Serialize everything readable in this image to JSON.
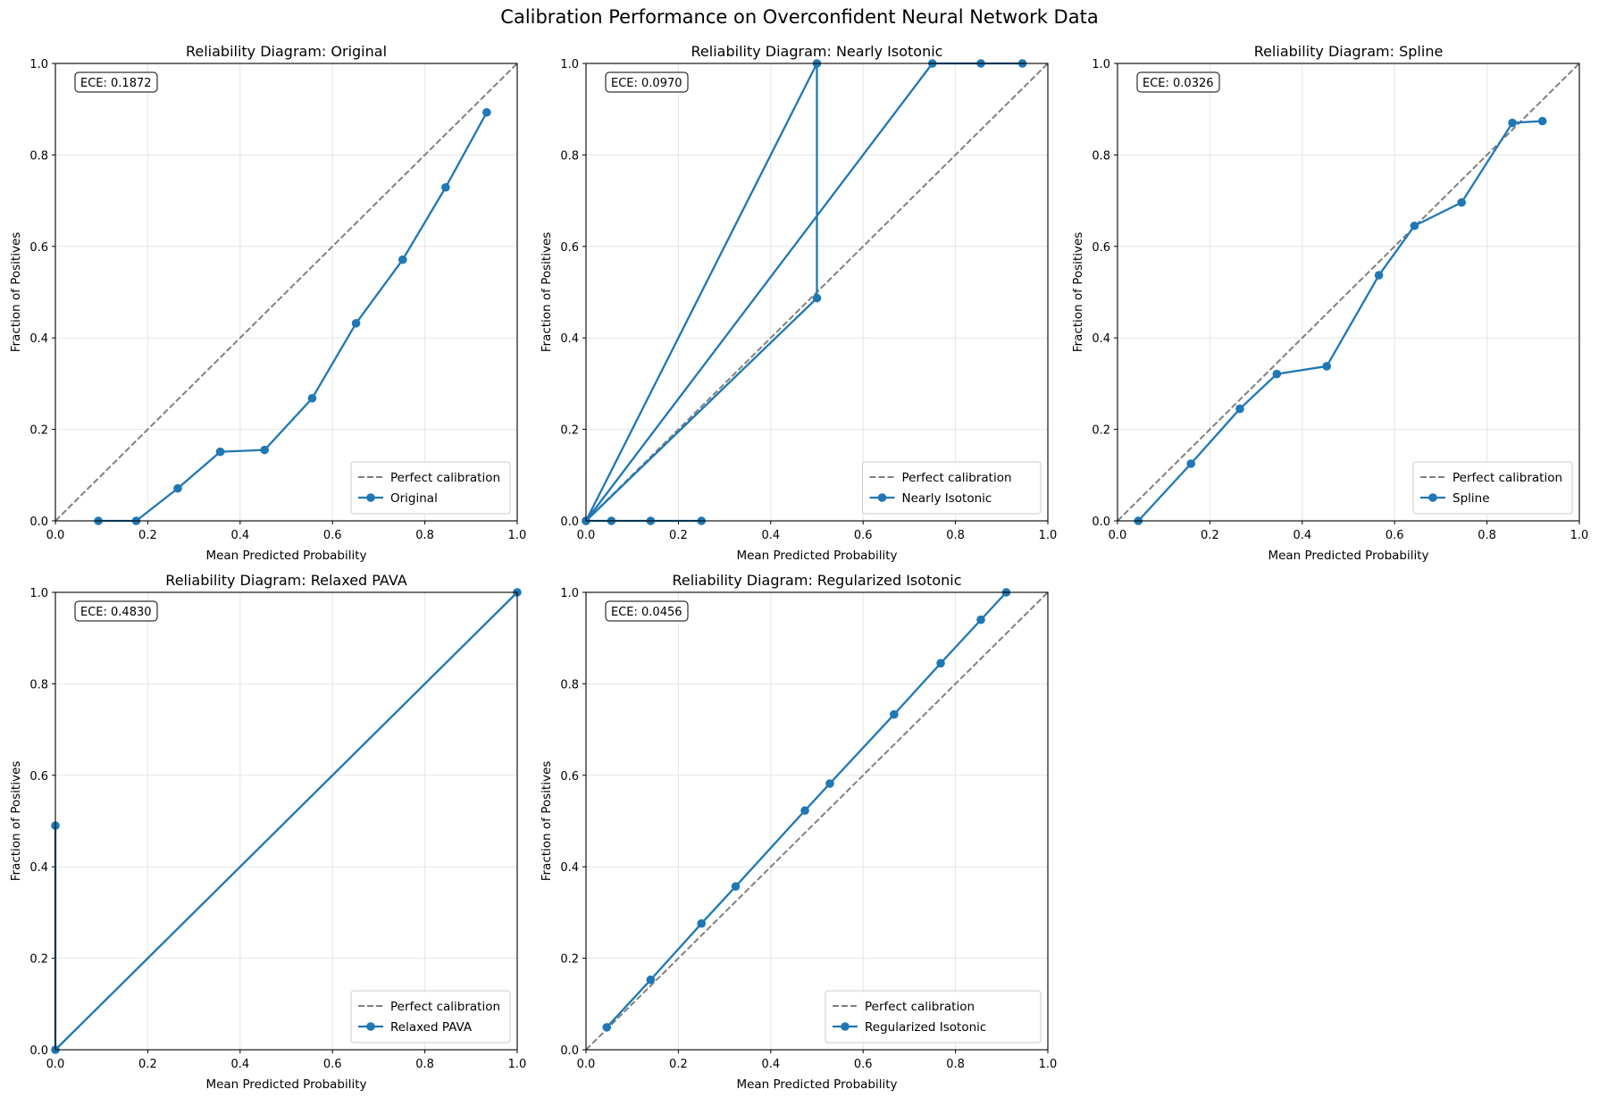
{
  "suptitle": "Calibration Performance on Overconfident Neural Network Data",
  "chart_data": [
    {
      "type": "line",
      "title": "Reliability Diagram: Original",
      "xlabel": "Mean Predicted Probability",
      "ylabel": "Fraction of Positives",
      "xlim": [
        0,
        1
      ],
      "ylim": [
        0,
        1
      ],
      "grid": true,
      "ticks": [
        "0.0",
        "0.2",
        "0.4",
        "0.6",
        "0.8",
        "1.0"
      ],
      "annotation": "ECE: 0.1872",
      "legend_position": "lower-right",
      "series": [
        {
          "name": "Perfect calibration",
          "style": "dashed",
          "color": "#808080",
          "x": [
            0,
            1
          ],
          "y": [
            0,
            1
          ]
        },
        {
          "name": "Original",
          "style": "solid-marker",
          "color": "#1f77b4",
          "x": [
            0.093,
            0.175,
            0.265,
            0.357,
            0.453,
            0.556,
            0.651,
            0.752,
            0.845,
            0.934
          ],
          "y": [
            0,
            0,
            0.071,
            0.151,
            0.155,
            0.268,
            0.432,
            0.571,
            0.729,
            0.893
          ]
        }
      ]
    },
    {
      "type": "line",
      "title": "Reliability Diagram: Nearly Isotonic",
      "xlabel": "Mean Predicted Probability",
      "ylabel": "Fraction of Positives",
      "xlim": [
        0,
        1
      ],
      "ylim": [
        0,
        1
      ],
      "grid": true,
      "ticks": [
        "0.0",
        "0.2",
        "0.4",
        "0.6",
        "0.8",
        "1.0"
      ],
      "annotation": "ECE: 0.0970",
      "legend_position": "lower-right",
      "series": [
        {
          "name": "Perfect calibration",
          "style": "dashed",
          "color": "#808080",
          "x": [
            0,
            1
          ],
          "y": [
            0,
            1
          ]
        },
        {
          "name": "Nearly Isotonic",
          "style": "solid-marker",
          "color": "#1f77b4",
          "x": [
            0.055,
            0.14,
            0.25,
            0,
            0.5,
            0.5,
            0,
            0.75,
            0.855,
            0.945
          ],
          "y": [
            0,
            0,
            0,
            0,
            0.487,
            1,
            0,
            1,
            1,
            1
          ]
        }
      ]
    },
    {
      "type": "line",
      "title": "Reliability Diagram: Spline",
      "xlabel": "Mean Predicted Probability",
      "ylabel": "Fraction of Positives",
      "xlim": [
        0,
        1
      ],
      "ylim": [
        0,
        1
      ],
      "grid": true,
      "ticks": [
        "0.0",
        "0.2",
        "0.4",
        "0.6",
        "0.8",
        "1.0"
      ],
      "annotation": "ECE: 0.0326",
      "legend_position": "lower-right",
      "series": [
        {
          "name": "Perfect calibration",
          "style": "dashed",
          "color": "#808080",
          "x": [
            0,
            1
          ],
          "y": [
            0,
            1
          ]
        },
        {
          "name": "Spline",
          "style": "solid-marker",
          "color": "#1f77b4",
          "x": [
            0.045,
            0.159,
            0.265,
            0.345,
            0.453,
            0.566,
            0.643,
            0.745,
            0.855,
            0.92
          ],
          "y": [
            0,
            0.125,
            0.245,
            0.321,
            0.338,
            0.537,
            0.645,
            0.696,
            0.87,
            0.874
          ]
        }
      ]
    },
    {
      "type": "line",
      "title": "Reliability Diagram: Relaxed PAVA",
      "xlabel": "Mean Predicted Probability",
      "ylabel": "Fraction of Positives",
      "xlim": [
        0,
        1
      ],
      "ylim": [
        0,
        1
      ],
      "grid": true,
      "ticks": [
        "0.0",
        "0.2",
        "0.4",
        "0.6",
        "0.8",
        "1.0"
      ],
      "annotation": "ECE: 0.4830",
      "legend_position": "lower-right",
      "series": [
        {
          "name": "Perfect calibration",
          "style": "dashed",
          "color": "#808080",
          "x": [
            0,
            1
          ],
          "y": [
            0,
            1
          ]
        },
        {
          "name": "Relaxed PAVA",
          "style": "solid-marker",
          "color": "#1f77b4",
          "x": [
            0,
            0,
            1
          ],
          "y": [
            0.49,
            0,
            1
          ]
        }
      ]
    },
    {
      "type": "line",
      "title": "Reliability Diagram: Regularized Isotonic",
      "xlabel": "Mean Predicted Probability",
      "ylabel": "Fraction of Positives",
      "xlim": [
        0,
        1
      ],
      "ylim": [
        0,
        1
      ],
      "grid": true,
      "ticks": [
        "0.0",
        "0.2",
        "0.4",
        "0.6",
        "0.8",
        "1.0"
      ],
      "annotation": "ECE: 0.0456",
      "legend_position": "lower-right",
      "series": [
        {
          "name": "Perfect calibration",
          "style": "dashed",
          "color": "#808080",
          "x": [
            0,
            1
          ],
          "y": [
            0,
            1
          ]
        },
        {
          "name": "Regularized Isotonic",
          "style": "solid-marker",
          "color": "#1f77b4",
          "x": [
            0.045,
            0.14,
            0.25,
            0.324,
            0.474,
            0.528,
            0.667,
            0.768,
            0.855,
            0.91
          ],
          "y": [
            0.049,
            0.153,
            0.276,
            0.357,
            0.523,
            0.582,
            0.733,
            0.845,
            0.94,
            1.0
          ]
        }
      ]
    }
  ]
}
